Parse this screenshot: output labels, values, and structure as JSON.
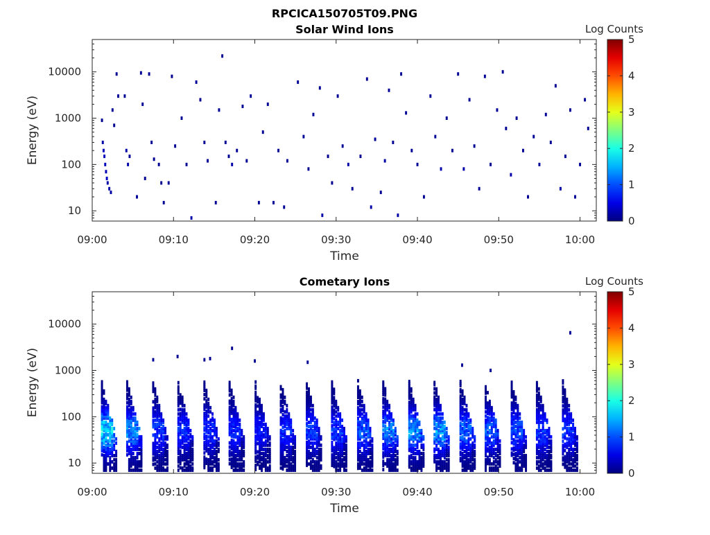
{
  "figure": {
    "title": "RPCICA150705T09.PNG"
  },
  "chart_data": [
    {
      "type": "heatmap",
      "title": "Solar Wind Ions",
      "xlabel": "Time",
      "ylabel": "Energy (eV)",
      "x_ticks": [
        "09:00",
        "09:10",
        "09:20",
        "09:30",
        "09:40",
        "09:50",
        "10:00"
      ],
      "x_range_minutes": [
        0,
        62
      ],
      "y_scale": "log",
      "y_ticks": [
        10,
        100,
        1000,
        10000
      ],
      "y_tick_labels": [
        "10",
        "100",
        "1000",
        "10000"
      ],
      "y_range": [
        6,
        50000
      ],
      "colorbar": {
        "label": "Log Counts",
        "min": 0,
        "max": 5,
        "ticks": [
          "0",
          "1",
          "2",
          "3",
          "4",
          "5"
        ],
        "colormap": "jet"
      },
      "grid": false,
      "description_of_data": "Sparse dark-blue pixels (log counts ~0-0.3) scattered across 10-20000 eV, denser below 300 eV near 09:01-09:03",
      "points": [
        {
          "t": 1.2,
          "e": 900,
          "v": 0.1
        },
        {
          "t": 1.3,
          "e": 300,
          "v": 0.2
        },
        {
          "t": 1.4,
          "e": 200,
          "v": 0.3
        },
        {
          "t": 1.5,
          "e": 150,
          "v": 0.3
        },
        {
          "t": 1.6,
          "e": 100,
          "v": 0.3
        },
        {
          "t": 1.7,
          "e": 70,
          "v": 0.3
        },
        {
          "t": 1.8,
          "e": 50,
          "v": 0.3
        },
        {
          "t": 1.9,
          "e": 40,
          "v": 0.2
        },
        {
          "t": 2.1,
          "e": 30,
          "v": 0.2
        },
        {
          "t": 2.3,
          "e": 25,
          "v": 0.2
        },
        {
          "t": 2.5,
          "e": 1500,
          "v": 0.1
        },
        {
          "t": 2.7,
          "e": 700,
          "v": 0.1
        },
        {
          "t": 3.0,
          "e": 9000,
          "v": 0.1
        },
        {
          "t": 3.2,
          "e": 3000,
          "v": 0.1
        },
        {
          "t": 4.0,
          "e": 3000,
          "v": 0.1
        },
        {
          "t": 4.2,
          "e": 200,
          "v": 0.2
        },
        {
          "t": 4.4,
          "e": 100,
          "v": 0.2
        },
        {
          "t": 4.6,
          "e": 150,
          "v": 0.1
        },
        {
          "t": 5.5,
          "e": 20,
          "v": 0.1
        },
        {
          "t": 6.0,
          "e": 9500,
          "v": 0.1
        },
        {
          "t": 6.2,
          "e": 2000,
          "v": 0.1
        },
        {
          "t": 6.5,
          "e": 50,
          "v": 0.1
        },
        {
          "t": 7.0,
          "e": 9000,
          "v": 0.1
        },
        {
          "t": 7.3,
          "e": 300,
          "v": 0.1
        },
        {
          "t": 7.6,
          "e": 130,
          "v": 0.1
        },
        {
          "t": 8.2,
          "e": 100,
          "v": 0.1
        },
        {
          "t": 8.5,
          "e": 40,
          "v": 0.1
        },
        {
          "t": 8.8,
          "e": 15,
          "v": 0.1
        },
        {
          "t": 9.4,
          "e": 40,
          "v": 0.1
        },
        {
          "t": 9.8,
          "e": 8000,
          "v": 0.1
        },
        {
          "t": 10.2,
          "e": 250,
          "v": 0.1
        },
        {
          "t": 11.0,
          "e": 1000,
          "v": 0.1
        },
        {
          "t": 11.6,
          "e": 100,
          "v": 0.1
        },
        {
          "t": 12.2,
          "e": 7,
          "v": 0.2
        },
        {
          "t": 12.8,
          "e": 6000,
          "v": 0.1
        },
        {
          "t": 13.3,
          "e": 2500,
          "v": 0.1
        },
        {
          "t": 13.8,
          "e": 300,
          "v": 0.1
        },
        {
          "t": 14.2,
          "e": 120,
          "v": 0.1
        },
        {
          "t": 15.2,
          "e": 15,
          "v": 0.1
        },
        {
          "t": 15.6,
          "e": 1500,
          "v": 0.1
        },
        {
          "t": 16.0,
          "e": 22000,
          "v": 0.1
        },
        {
          "t": 16.4,
          "e": 300,
          "v": 0.1
        },
        {
          "t": 16.8,
          "e": 150,
          "v": 0.1
        },
        {
          "t": 17.2,
          "e": 100,
          "v": 0.2
        },
        {
          "t": 17.8,
          "e": 200,
          "v": 0.1
        },
        {
          "t": 18.5,
          "e": 1800,
          "v": 0.1
        },
        {
          "t": 19.0,
          "e": 120,
          "v": 0.1
        },
        {
          "t": 19.5,
          "e": 3000,
          "v": 0.1
        },
        {
          "t": 20.5,
          "e": 15,
          "v": 0.1
        },
        {
          "t": 21.0,
          "e": 500,
          "v": 0.1
        },
        {
          "t": 21.6,
          "e": 2000,
          "v": 0.1
        },
        {
          "t": 22.3,
          "e": 15,
          "v": 0.1
        },
        {
          "t": 22.9,
          "e": 200,
          "v": 0.1
        },
        {
          "t": 23.6,
          "e": 12,
          "v": 0.1
        },
        {
          "t": 24.0,
          "e": 120,
          "v": 0.1
        },
        {
          "t": 25.3,
          "e": 6000,
          "v": 0.1
        },
        {
          "t": 26.0,
          "e": 400,
          "v": 0.1
        },
        {
          "t": 26.6,
          "e": 80,
          "v": 0.1
        },
        {
          "t": 27.2,
          "e": 1200,
          "v": 0.1
        },
        {
          "t": 28.0,
          "e": 4500,
          "v": 0.1
        },
        {
          "t": 28.3,
          "e": 8,
          "v": 0.2
        },
        {
          "t": 29.0,
          "e": 150,
          "v": 0.1
        },
        {
          "t": 29.5,
          "e": 40,
          "v": 0.1
        },
        {
          "t": 30.2,
          "e": 3000,
          "v": 0.1
        },
        {
          "t": 30.8,
          "e": 250,
          "v": 0.1
        },
        {
          "t": 31.5,
          "e": 100,
          "v": 0.2
        },
        {
          "t": 32.0,
          "e": 30,
          "v": 0.1
        },
        {
          "t": 33.0,
          "e": 150,
          "v": 0.1
        },
        {
          "t": 33.8,
          "e": 7000,
          "v": 0.1
        },
        {
          "t": 34.3,
          "e": 12,
          "v": 0.2
        },
        {
          "t": 34.8,
          "e": 350,
          "v": 0.1
        },
        {
          "t": 35.5,
          "e": 25,
          "v": 0.1
        },
        {
          "t": 36.0,
          "e": 120,
          "v": 0.2
        },
        {
          "t": 36.5,
          "e": 4000,
          "v": 0.1
        },
        {
          "t": 37.0,
          "e": 300,
          "v": 0.1
        },
        {
          "t": 37.6,
          "e": 8,
          "v": 0.2
        },
        {
          "t": 38.0,
          "e": 9000,
          "v": 0.1
        },
        {
          "t": 38.6,
          "e": 1300,
          "v": 0.1
        },
        {
          "t": 39.3,
          "e": 200,
          "v": 0.1
        },
        {
          "t": 40.0,
          "e": 100,
          "v": 0.1
        },
        {
          "t": 40.8,
          "e": 20,
          "v": 0.1
        },
        {
          "t": 41.6,
          "e": 3000,
          "v": 0.1
        },
        {
          "t": 42.2,
          "e": 400,
          "v": 0.1
        },
        {
          "t": 42.9,
          "e": 80,
          "v": 0.2
        },
        {
          "t": 43.6,
          "e": 1000,
          "v": 0.1
        },
        {
          "t": 44.3,
          "e": 200,
          "v": 0.1
        },
        {
          "t": 45.0,
          "e": 9000,
          "v": 0.1
        },
        {
          "t": 45.7,
          "e": 80,
          "v": 0.2
        },
        {
          "t": 46.4,
          "e": 2500,
          "v": 0.1
        },
        {
          "t": 47.0,
          "e": 250,
          "v": 0.1
        },
        {
          "t": 47.6,
          "e": 30,
          "v": 0.1
        },
        {
          "t": 48.3,
          "e": 8000,
          "v": 0.1
        },
        {
          "t": 49.0,
          "e": 100,
          "v": 0.1
        },
        {
          "t": 49.8,
          "e": 1500,
          "v": 0.1
        },
        {
          "t": 50.5,
          "e": 10000,
          "v": 0.1
        },
        {
          "t": 50.9,
          "e": 600,
          "v": 0.1
        },
        {
          "t": 51.5,
          "e": 60,
          "v": 0.2
        },
        {
          "t": 52.2,
          "e": 1000,
          "v": 0.1
        },
        {
          "t": 53.0,
          "e": 200,
          "v": 0.1
        },
        {
          "t": 53.6,
          "e": 20,
          "v": 0.1
        },
        {
          "t": 54.3,
          "e": 400,
          "v": 0.1
        },
        {
          "t": 55.0,
          "e": 100,
          "v": 0.1
        },
        {
          "t": 55.8,
          "e": 1200,
          "v": 0.1
        },
        {
          "t": 56.4,
          "e": 300,
          "v": 0.1
        },
        {
          "t": 57.0,
          "e": 5000,
          "v": 0.1
        },
        {
          "t": 57.6,
          "e": 30,
          "v": 0.2
        },
        {
          "t": 58.2,
          "e": 150,
          "v": 0.1
        },
        {
          "t": 58.8,
          "e": 1500,
          "v": 0.1
        },
        {
          "t": 59.4,
          "e": 20,
          "v": 0.1
        },
        {
          "t": 60.0,
          "e": 100,
          "v": 0.1
        },
        {
          "t": 60.6,
          "e": 2500,
          "v": 0.1
        },
        {
          "t": 61.0,
          "e": 600,
          "v": 0.1
        }
      ]
    },
    {
      "type": "heatmap",
      "title": "Cometary Ions",
      "xlabel": "Time",
      "ylabel": "Energy (eV)",
      "x_ticks": [
        "09:00",
        "09:10",
        "09:20",
        "09:30",
        "09:40",
        "09:50",
        "10:00"
      ],
      "x_range_minutes": [
        0,
        62
      ],
      "y_scale": "log",
      "y_ticks": [
        10,
        100,
        1000,
        10000
      ],
      "y_tick_labels": [
        "10",
        "100",
        "1000",
        "10000"
      ],
      "y_range": [
        6,
        50000
      ],
      "colorbar": {
        "label": "Log Counts",
        "min": 0,
        "max": 5,
        "ticks": [
          "0",
          "1",
          "2",
          "3",
          "4",
          "5"
        ],
        "colormap": "jet"
      },
      "grid": false,
      "description_of_data": "Periodic energy sweeps roughly every 3.2 minutes; each burst descends from ~500 eV to ~10 eV, peak log counts ~1-2 at 30-100 eV",
      "sweep_starts_minutes": [
        1.2,
        4.3,
        7.5,
        10.6,
        13.8,
        16.9,
        20.1,
        23.2,
        26.4,
        29.5,
        32.7,
        35.8,
        39.0,
        42.1,
        45.3,
        48.4,
        51.6,
        54.7,
        57.9
      ],
      "sweep_peak_log_counts": [
        2.0,
        1.5,
        1.0,
        0.9,
        0.9,
        0.9,
        0.8,
        0.9,
        1.0,
        1.0,
        1.2,
        1.4,
        1.5,
        1.6,
        1.3,
        1.2,
        1.1,
        1.0,
        1.0
      ],
      "isolated_points": [
        {
          "t": 7.5,
          "e": 1700,
          "v": 0.1
        },
        {
          "t": 10.5,
          "e": 2000,
          "v": 0.1
        },
        {
          "t": 13.8,
          "e": 1700,
          "v": 0.1
        },
        {
          "t": 14.5,
          "e": 1800,
          "v": 0.1
        },
        {
          "t": 17.2,
          "e": 3000,
          "v": 0.1
        },
        {
          "t": 20.0,
          "e": 1600,
          "v": 0.1
        },
        {
          "t": 26.5,
          "e": 1500,
          "v": 0.1
        },
        {
          "t": 45.5,
          "e": 1300,
          "v": 0.1
        },
        {
          "t": 49.0,
          "e": 1000,
          "v": 0.1
        },
        {
          "t": 58.8,
          "e": 6500,
          "v": 0.1
        }
      ]
    }
  ]
}
